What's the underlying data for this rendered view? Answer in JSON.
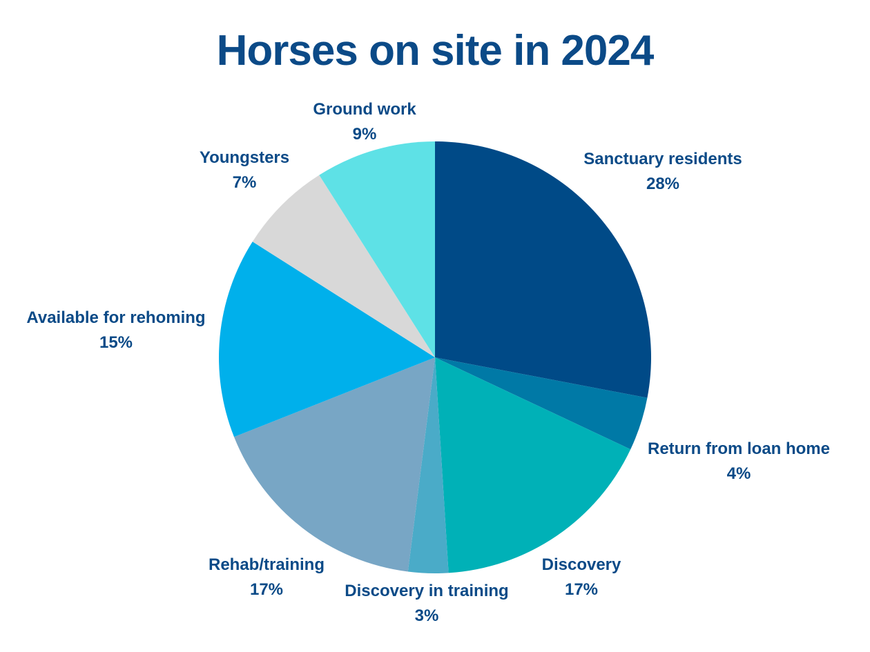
{
  "chart_data": {
    "type": "pie",
    "title": "Horses on site in 2024",
    "start_angle": "12 o'clock",
    "direction": "clockwise",
    "slices": [
      {
        "label": "Sanctuary residents",
        "value": 28,
        "display": "28%",
        "color": "#004a87"
      },
      {
        "label": "Return from loan home",
        "value": 4,
        "display": "4%",
        "color": "#0079a6"
      },
      {
        "label": "Discovery",
        "value": 17,
        "display": "17%",
        "color": "#00b1b7"
      },
      {
        "label": "Discovery in training",
        "value": 3,
        "display": "3%",
        "color": "#4aabc8"
      },
      {
        "label": "Rehab/training",
        "value": 17,
        "display": "17%",
        "color": "#78a6c5"
      },
      {
        "label": "Available for rehoming",
        "value": 15,
        "display": "15%",
        "color": "#00b0eb"
      },
      {
        "label": "Youngsters",
        "value": 7,
        "display": "7%",
        "color": "#d8d8d8"
      },
      {
        "label": "Ground work",
        "value": 9,
        "display": "9%",
        "color": "#5ee1e6"
      }
    ]
  },
  "colors": {
    "title": "#0b4a87",
    "label": "#0b4a87",
    "background": "#ffffff"
  }
}
